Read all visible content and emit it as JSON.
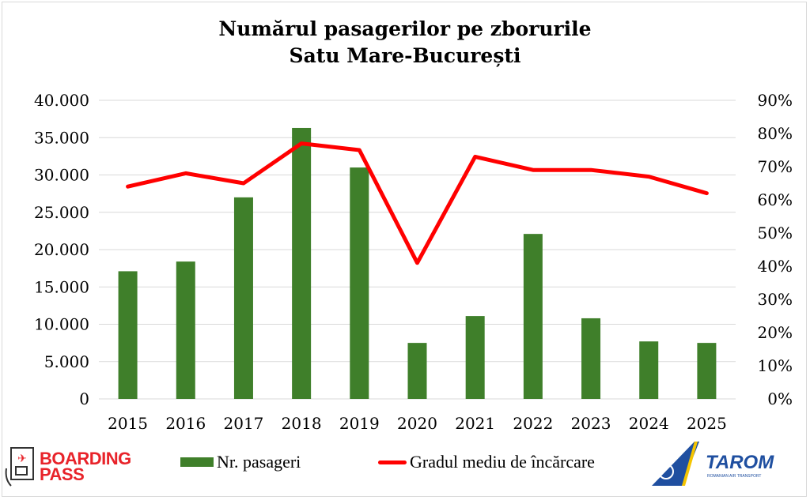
{
  "chart_data": {
    "type": "bar+line",
    "title": [
      "Numărul pasagerilor pe zborurile",
      "Satu Mare-București"
    ],
    "categories": [
      "2015",
      "2016",
      "2017",
      "2018",
      "2019",
      "2020",
      "2021",
      "2022",
      "2023",
      "2024",
      "2025"
    ],
    "series": [
      {
        "name": "Nr. pasageri",
        "type": "bar",
        "axis": "left",
        "color": "#3f7f2a",
        "values": [
          17100,
          18400,
          27000,
          36300,
          31000,
          7500,
          11100,
          22100,
          10800,
          7700,
          7500
        ]
      },
      {
        "name": "Gradul mediu de încărcare",
        "type": "line",
        "axis": "right",
        "color": "#ff0000",
        "values": [
          64,
          68,
          65,
          77,
          75,
          41,
          73,
          69,
          69,
          67,
          62
        ]
      }
    ],
    "left_axis": {
      "ylim": [
        0,
        40000
      ],
      "ticks": [
        "0",
        "5.000",
        "10.000",
        "15.000",
        "20.000",
        "25.000",
        "30.000",
        "35.000",
        "40.000"
      ]
    },
    "right_axis": {
      "ylim": [
        0,
        90
      ],
      "ticks": [
        "0%",
        "10%",
        "20%",
        "30%",
        "40%",
        "50%",
        "60%",
        "70%",
        "80%",
        "90%"
      ]
    },
    "grid": true,
    "legend": "bottom"
  },
  "logos": {
    "left": "BOARDING PASS",
    "left_line1": "BOARDING",
    "left_line2": "PASS",
    "right": "TAROM",
    "right_sub": "ROMANIAN AIR TRANSPORT"
  }
}
